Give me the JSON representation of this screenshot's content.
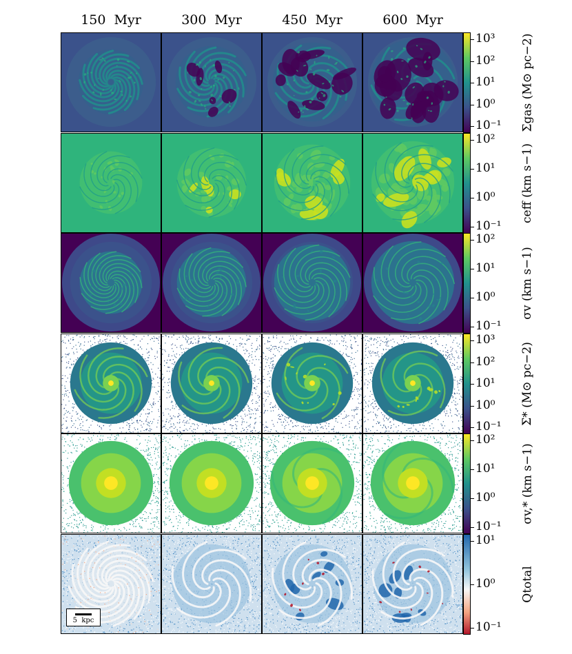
{
  "figure": {
    "column_titles": [
      "150  Myr",
      "300  Myr",
      "450  Myr",
      "600  Myr"
    ],
    "rows": [
      {
        "quantity": "gas_surface_density",
        "label": "Σgas  (M⊙ pc−2)",
        "colormap": "viridis",
        "ticks": [
          "10³",
          "10²",
          "10¹",
          "10⁰",
          "10⁻¹"
        ],
        "panel_style": "gas-density"
      },
      {
        "quantity": "effective_sound_speed",
        "label": "ceff  (km s−1)",
        "colormap": "viridis",
        "ticks": [
          "10²",
          "10¹",
          "10⁰",
          "10⁻¹"
        ],
        "panel_style": "sound-speed"
      },
      {
        "quantity": "gas_velocity_dispersion",
        "label": "σv  (km s−1)",
        "colormap": "viridis",
        "ticks": [
          "10²",
          "10¹",
          "10⁰",
          "10⁻¹"
        ],
        "panel_style": "gas-dispersion"
      },
      {
        "quantity": "stellar_surface_density",
        "label": "Σ*  (M⊙ pc−2)",
        "colormap": "viridis",
        "ticks": [
          "10³",
          "10²",
          "10¹",
          "10⁰",
          "10⁻¹"
        ],
        "panel_style": "stellar-density"
      },
      {
        "quantity": "stellar_velocity_dispersion",
        "label": "σv,*  (km s−1)",
        "colormap": "viridis",
        "ticks": [
          "10²",
          "10¹",
          "10⁰",
          "10⁻¹"
        ],
        "panel_style": "stellar-dispersion"
      },
      {
        "quantity": "toomre_q_total",
        "label": "Qtotal",
        "colormap": "RdBu",
        "ticks": [
          "10¹",
          "10⁰",
          "10⁻¹"
        ],
        "panel_style": "toomre"
      }
    ],
    "scale_bar": {
      "label": "5  kpc"
    },
    "colors": {
      "viridis_dark": "#440154",
      "viridis_blue": "#3b528b",
      "viridis_teal": "#21918c",
      "viridis_green": "#5ec962",
      "viridis_yellow": "#fde725",
      "rdbu_blue": "#2166ac",
      "rdbu_white": "#f7f7f7",
      "rdbu_red": "#b2182b"
    }
  }
}
